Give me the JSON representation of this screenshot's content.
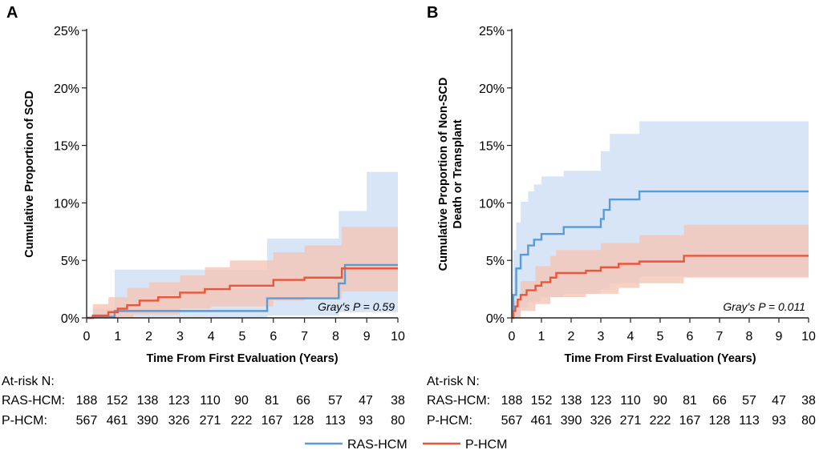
{
  "legend": {
    "items": [
      {
        "name": "RAS-HCM",
        "color": "#5b9bd5"
      },
      {
        "name": "P-HCM",
        "color": "#e8573c"
      }
    ]
  },
  "at_risk": {
    "title": "At-risk N:",
    "times": [
      0,
      1,
      2,
      3,
      4,
      5,
      6,
      7,
      8,
      9,
      10
    ],
    "rows": [
      {
        "label": "RAS-HCM:",
        "values": [
          188,
          152,
          138,
          123,
          110,
          90,
          81,
          66,
          57,
          47,
          38
        ]
      },
      {
        "label": "P-HCM:",
        "values": [
          567,
          461,
          390,
          326,
          271,
          222,
          167,
          128,
          113,
          93,
          80
        ]
      }
    ]
  },
  "chart_data": [
    {
      "panel_label": "A",
      "type": "line",
      "step": true,
      "ylabel": [
        "Cumulative Proportion of SCD"
      ],
      "xlabel": "Time From First Evaluation (Years)",
      "xlim": [
        0,
        10
      ],
      "ylim": [
        0,
        25
      ],
      "x_ticks": [
        "0",
        "1",
        "2",
        "3",
        "4",
        "5",
        "6",
        "7",
        "8",
        "9",
        "10"
      ],
      "y_ticks": [
        "0%",
        "5%",
        "10%",
        "15%",
        "20%",
        "25%"
      ],
      "annotation": "Gray's P = 0.59",
      "series": [
        {
          "name": "RAS-HCM",
          "color": "#5b9bd5",
          "band_color": "#d3e2f6",
          "points": [
            [
              0,
              0
            ],
            [
              0.2,
              0
            ],
            [
              0.2,
              0.1
            ],
            [
              0.9,
              0.1
            ],
            [
              0.9,
              0.6
            ],
            [
              5.8,
              0.6
            ],
            [
              5.8,
              1.7
            ],
            [
              8.1,
              1.7
            ],
            [
              8.1,
              3.0
            ],
            [
              8.3,
              3.0
            ],
            [
              8.3,
              4.6
            ],
            [
              10,
              4.6
            ]
          ],
          "lower": [
            [
              0,
              0
            ],
            [
              0.9,
              0
            ],
            [
              5.8,
              0
            ],
            [
              5.8,
              0.2
            ],
            [
              8.1,
              0.2
            ],
            [
              8.1,
              0.5
            ],
            [
              10,
              0.5
            ]
          ],
          "upper": [
            [
              0,
              0
            ],
            [
              0.2,
              0
            ],
            [
              0.2,
              0.8
            ],
            [
              0.9,
              0.8
            ],
            [
              0.9,
              4.2
            ],
            [
              5.8,
              4.2
            ],
            [
              5.8,
              6.9
            ],
            [
              8.1,
              6.9
            ],
            [
              8.1,
              9.3
            ],
            [
              9,
              9.3
            ],
            [
              9,
              12.7
            ],
            [
              10,
              12.7
            ]
          ]
        },
        {
          "name": "P-HCM",
          "color": "#e8573c",
          "band_color": "#f5c2b2",
          "points": [
            [
              0,
              0
            ],
            [
              0.2,
              0
            ],
            [
              0.2,
              0.2
            ],
            [
              0.7,
              0.2
            ],
            [
              0.7,
              0.5
            ],
            [
              1.0,
              0.5
            ],
            [
              1.0,
              0.8
            ],
            [
              1.3,
              0.8
            ],
            [
              1.3,
              1.1
            ],
            [
              1.7,
              1.1
            ],
            [
              1.7,
              1.5
            ],
            [
              2.3,
              1.5
            ],
            [
              2.3,
              1.8
            ],
            [
              3.0,
              1.8
            ],
            [
              3.0,
              2.2
            ],
            [
              3.8,
              2.2
            ],
            [
              3.8,
              2.5
            ],
            [
              4.6,
              2.5
            ],
            [
              4.6,
              2.8
            ],
            [
              6.0,
              2.8
            ],
            [
              6.0,
              3.3
            ],
            [
              7.0,
              3.3
            ],
            [
              7.0,
              3.5
            ],
            [
              8.2,
              3.5
            ],
            [
              8.2,
              4.3
            ],
            [
              10,
              4.3
            ]
          ],
          "lower": [
            [
              0,
              0
            ],
            [
              1.5,
              0
            ],
            [
              1.5,
              0.3
            ],
            [
              3.0,
              0.3
            ],
            [
              3.0,
              0.8
            ],
            [
              4.0,
              0.8
            ],
            [
              4.0,
              1.0
            ],
            [
              6.0,
              1.0
            ],
            [
              6.0,
              1.5
            ],
            [
              7.0,
              1.5
            ],
            [
              7.0,
              1.7
            ],
            [
              8.2,
              1.7
            ],
            [
              8.2,
              2.3
            ],
            [
              10,
              2.3
            ]
          ],
          "upper": [
            [
              0,
              0
            ],
            [
              0.2,
              0
            ],
            [
              0.2,
              1.2
            ],
            [
              0.7,
              1.2
            ],
            [
              0.7,
              1.8
            ],
            [
              1.3,
              1.8
            ],
            [
              1.3,
              2.6
            ],
            [
              2.0,
              2.6
            ],
            [
              2.0,
              3.1
            ],
            [
              3.0,
              3.1
            ],
            [
              3.0,
              3.7
            ],
            [
              3.8,
              3.7
            ],
            [
              3.8,
              4.4
            ],
            [
              4.6,
              4.4
            ],
            [
              4.6,
              5.0
            ],
            [
              6.0,
              5.0
            ],
            [
              6.0,
              5.7
            ],
            [
              7.0,
              5.7
            ],
            [
              7.0,
              6.3
            ],
            [
              8.2,
              6.3
            ],
            [
              8.2,
              7.9
            ],
            [
              10,
              7.9
            ]
          ]
        }
      ]
    },
    {
      "panel_label": "B",
      "type": "line",
      "step": true,
      "ylabel": [
        "Cumulative Proportion of Non-SCD",
        "Death or Transplant"
      ],
      "xlabel": "Time From First Evaluation (Years)",
      "xlim": [
        0,
        10
      ],
      "ylim": [
        0,
        25
      ],
      "x_ticks": [
        "0",
        "1",
        "2",
        "3",
        "4",
        "5",
        "6",
        "7",
        "8",
        "9",
        "10"
      ],
      "y_ticks": [
        "0%",
        "5%",
        "10%",
        "15%",
        "20%",
        "25%"
      ],
      "annotation": "Gray's P = 0.011",
      "series": [
        {
          "name": "RAS-HCM",
          "color": "#5b9bd5",
          "band_color": "#d3e2f6",
          "points": [
            [
              0,
              0
            ],
            [
              0.05,
              0
            ],
            [
              0.05,
              2.0
            ],
            [
              0.15,
              2.0
            ],
            [
              0.15,
              4.3
            ],
            [
              0.3,
              4.3
            ],
            [
              0.3,
              5.5
            ],
            [
              0.55,
              5.5
            ],
            [
              0.55,
              6.3
            ],
            [
              0.75,
              6.3
            ],
            [
              0.75,
              6.8
            ],
            [
              1.0,
              6.8
            ],
            [
              1.0,
              7.3
            ],
            [
              1.75,
              7.3
            ],
            [
              1.75,
              7.9
            ],
            [
              3.0,
              7.9
            ],
            [
              3.0,
              8.6
            ],
            [
              3.1,
              8.6
            ],
            [
              3.1,
              9.4
            ],
            [
              3.3,
              9.4
            ],
            [
              3.3,
              10.3
            ],
            [
              4.3,
              10.3
            ],
            [
              4.3,
              11.0
            ],
            [
              10,
              11.0
            ]
          ],
          "lower": [
            [
              0,
              0
            ],
            [
              0.3,
              0
            ],
            [
              0.3,
              0.9
            ],
            [
              0.55,
              0.9
            ],
            [
              0.55,
              1.4
            ],
            [
              1.0,
              1.4
            ],
            [
              1.0,
              1.8
            ],
            [
              1.75,
              1.8
            ],
            [
              1.75,
              2.1
            ],
            [
              3.0,
              2.1
            ],
            [
              3.0,
              2.5
            ],
            [
              3.3,
              2.5
            ],
            [
              3.3,
              3.0
            ],
            [
              4.3,
              3.0
            ],
            [
              4.3,
              3.6
            ],
            [
              10,
              3.6
            ]
          ],
          "upper": [
            [
              0,
              0
            ],
            [
              0.05,
              0
            ],
            [
              0.05,
              5.9
            ],
            [
              0.15,
              5.9
            ],
            [
              0.15,
              8.3
            ],
            [
              0.3,
              8.3
            ],
            [
              0.3,
              10.1
            ],
            [
              0.55,
              10.1
            ],
            [
              0.55,
              11.0
            ],
            [
              0.75,
              11.0
            ],
            [
              0.75,
              11.6
            ],
            [
              1.0,
              11.6
            ],
            [
              1.0,
              12.3
            ],
            [
              1.75,
              12.3
            ],
            [
              1.75,
              12.8
            ],
            [
              3.0,
              12.8
            ],
            [
              3.0,
              14.5
            ],
            [
              3.3,
              14.5
            ],
            [
              3.3,
              16.0
            ],
            [
              4.3,
              16.0
            ],
            [
              4.3,
              17.1
            ],
            [
              10,
              17.1
            ]
          ]
        },
        {
          "name": "P-HCM",
          "color": "#e8573c",
          "band_color": "#f5c2b2",
          "points": [
            [
              0,
              0
            ],
            [
              0.05,
              0
            ],
            [
              0.05,
              0.6
            ],
            [
              0.12,
              0.6
            ],
            [
              0.12,
              1.0
            ],
            [
              0.2,
              1.0
            ],
            [
              0.2,
              1.6
            ],
            [
              0.3,
              1.6
            ],
            [
              0.3,
              2.0
            ],
            [
              0.5,
              2.0
            ],
            [
              0.5,
              2.4
            ],
            [
              0.8,
              2.4
            ],
            [
              0.8,
              2.8
            ],
            [
              1.0,
              2.8
            ],
            [
              1.0,
              3.1
            ],
            [
              1.3,
              3.1
            ],
            [
              1.3,
              3.5
            ],
            [
              1.5,
              3.5
            ],
            [
              1.5,
              3.9
            ],
            [
              2.5,
              3.9
            ],
            [
              2.5,
              4.1
            ],
            [
              3.0,
              4.1
            ],
            [
              3.0,
              4.4
            ],
            [
              3.6,
              4.4
            ],
            [
              3.6,
              4.7
            ],
            [
              4.3,
              4.7
            ],
            [
              4.3,
              4.9
            ],
            [
              5.8,
              4.9
            ],
            [
              5.8,
              5.4
            ],
            [
              10,
              5.4
            ]
          ],
          "lower": [
            [
              0,
              0
            ],
            [
              0.3,
              0
            ],
            [
              0.3,
              0.6
            ],
            [
              0.8,
              0.6
            ],
            [
              0.8,
              1.2
            ],
            [
              1.3,
              1.2
            ],
            [
              1.3,
              1.8
            ],
            [
              2.5,
              1.8
            ],
            [
              2.5,
              2.1
            ],
            [
              3.6,
              2.1
            ],
            [
              3.6,
              2.6
            ],
            [
              4.3,
              2.6
            ],
            [
              4.3,
              3.0
            ],
            [
              5.8,
              3.0
            ],
            [
              5.8,
              3.5
            ],
            [
              10,
              3.5
            ]
          ],
          "upper": [
            [
              0,
              0
            ],
            [
              0.05,
              0
            ],
            [
              0.05,
              1.5
            ],
            [
              0.3,
              1.5
            ],
            [
              0.3,
              3.2
            ],
            [
              0.8,
              3.2
            ],
            [
              0.8,
              4.5
            ],
            [
              1.3,
              4.5
            ],
            [
              1.3,
              5.4
            ],
            [
              1.5,
              5.4
            ],
            [
              1.5,
              5.9
            ],
            [
              3.0,
              5.9
            ],
            [
              3.0,
              6.5
            ],
            [
              4.3,
              6.5
            ],
            [
              4.3,
              7.2
            ],
            [
              5.8,
              7.2
            ],
            [
              5.8,
              8.1
            ],
            [
              10,
              8.1
            ]
          ]
        }
      ]
    }
  ]
}
